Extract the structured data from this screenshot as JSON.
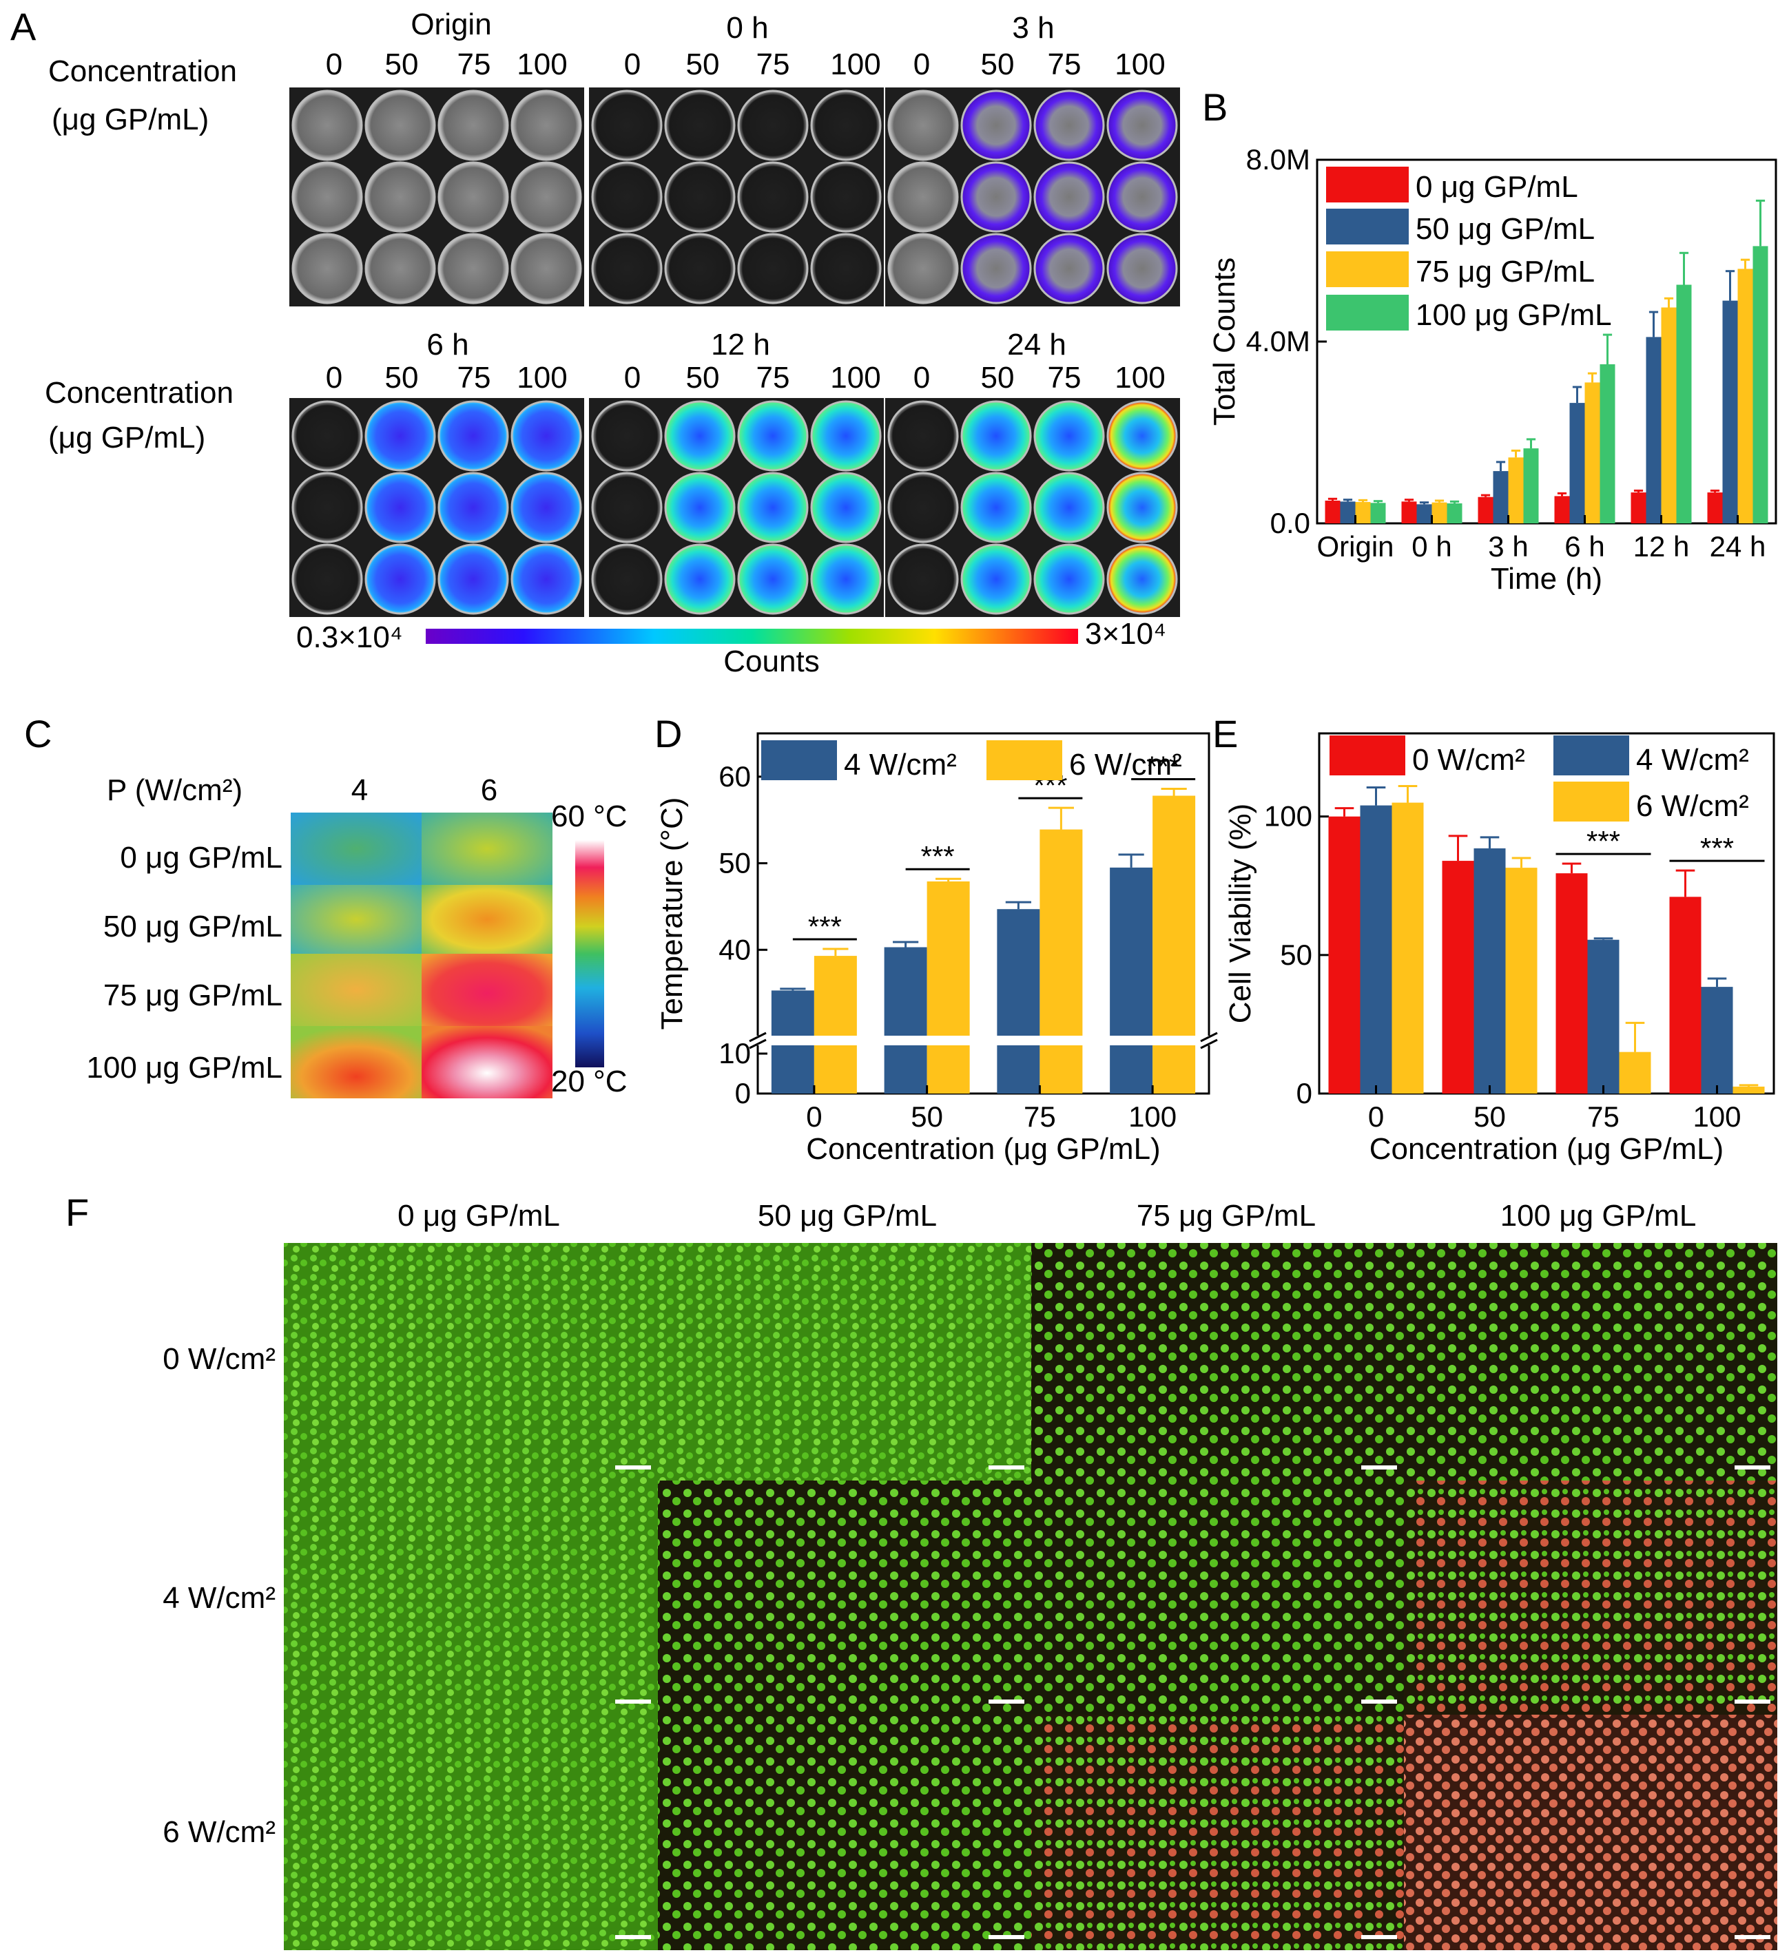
{
  "colors": {
    "red": "#ee1111",
    "blue": "#2e5b8e",
    "yellow": "#ffc21a",
    "green": "#3cc46e",
    "plate_bg": "#1d1d1d"
  },
  "panel_a": {
    "letter": "A",
    "row_label_line1": "Concentration",
    "row_label_line2": "(μg GP/mL)",
    "time_labels_top": [
      "Origin",
      "0 h",
      "3 h"
    ],
    "time_labels_bottom": [
      "6 h",
      "12 h",
      "24 h"
    ],
    "conc_labels": [
      "0",
      "50",
      "75",
      "100"
    ],
    "colorbar_min": "0.3×10⁴",
    "colorbar_max": "3×10⁴",
    "colorbar_label": "Counts"
  },
  "panel_c": {
    "letter": "C",
    "header_p": "P (W/cm²)",
    "powers": [
      "4",
      "6"
    ],
    "rows": [
      "0 μg GP/mL",
      "50 μg GP/mL",
      "75 μg GP/mL",
      "100 μg GP/mL"
    ],
    "scale_max": "60 °C",
    "scale_min": "20 °C"
  },
  "panel_f": {
    "letter": "F",
    "columns": [
      "0 μg GP/mL",
      "50 μg GP/mL",
      "75 μg GP/mL",
      "100 μg GP/mL"
    ],
    "rows": [
      "0 W/cm²",
      "4 W/cm²",
      "6 W/cm²"
    ]
  },
  "chart_data": [
    {
      "id": "B",
      "letter": "B",
      "type": "bar",
      "title": "",
      "xlabel": "Time (h)",
      "ylabel": "Total Counts",
      "categories": [
        "Origin",
        "0 h",
        "3 h",
        "6 h",
        "12 h",
        "24 h"
      ],
      "ylim": [
        0,
        8000000
      ],
      "ytick_values": [
        0,
        4000000,
        8000000
      ],
      "ytick_labels": [
        "0.0",
        "4.0M",
        "8.0M"
      ],
      "legend_position": "top-left",
      "series": [
        {
          "name": "0 μg GP/mL",
          "color": "#ee1111",
          "values": [
            500000,
            480000,
            580000,
            600000,
            680000,
            680000
          ],
          "errors": [
            40000,
            40000,
            40000,
            60000,
            40000,
            40000
          ]
        },
        {
          "name": "50 μg GP/mL",
          "color": "#2e5b8e",
          "values": [
            480000,
            420000,
            1150000,
            2650000,
            4100000,
            4900000
          ],
          "errors": [
            40000,
            40000,
            200000,
            350000,
            550000,
            650000
          ]
        },
        {
          "name": "75 μg GP/mL",
          "color": "#ffc21a",
          "values": [
            470000,
            460000,
            1450000,
            3100000,
            4750000,
            5600000
          ],
          "errors": [
            40000,
            40000,
            150000,
            200000,
            200000,
            200000
          ]
        },
        {
          "name": "100 μg GP/mL",
          "color": "#3cc46e",
          "values": [
            450000,
            440000,
            1650000,
            3500000,
            5250000,
            6100000
          ],
          "errors": [
            40000,
            40000,
            200000,
            650000,
            700000,
            1000000
          ]
        }
      ]
    },
    {
      "id": "D",
      "letter": "D",
      "type": "bar",
      "title": "",
      "xlabel": "Concentration (μg GP/mL)",
      "ylabel": "Temperature (°C)",
      "categories": [
        "0",
        "50",
        "75",
        "100"
      ],
      "axis_break": [
        10,
        30
      ],
      "ylim": [
        0,
        65
      ],
      "ytick_values": [
        0,
        10,
        40,
        50,
        60
      ],
      "ytick_labels": [
        "0",
        "10",
        "40",
        "50",
        "60"
      ],
      "legend_position": "top",
      "significance": [
        "***",
        "***",
        "***",
        "***"
      ],
      "series": [
        {
          "name": "4 W/cm²",
          "color": "#2e5b8e",
          "values": [
            35.3,
            40.3,
            44.7,
            49.5
          ],
          "errors": [
            0.2,
            0.6,
            0.8,
            1.5
          ]
        },
        {
          "name": "6 W/cm²",
          "color": "#ffc21a",
          "values": [
            39.3,
            47.9,
            53.9,
            57.8
          ],
          "errors": [
            0.8,
            0.3,
            2.5,
            0.8
          ]
        }
      ]
    },
    {
      "id": "E",
      "letter": "E",
      "type": "bar",
      "title": "",
      "xlabel": "Concentration (μg GP/mL)",
      "ylabel": "Cell Viability (%)",
      "categories": [
        "0",
        "50",
        "75",
        "100"
      ],
      "ylim": [
        0,
        130
      ],
      "ytick_values": [
        0,
        50,
        100
      ],
      "ytick_labels": [
        "0",
        "50",
        "100"
      ],
      "legend_position": "top",
      "significance": [
        "",
        "",
        "***",
        "***"
      ],
      "series": [
        {
          "name": "0 W/cm²",
          "color": "#ee1111",
          "values": [
            100,
            84,
            79.5,
            71
          ],
          "errors": [
            3,
            9,
            3.5,
            9.5
          ]
        },
        {
          "name": "4 W/cm²",
          "color": "#2e5b8e",
          "values": [
            104,
            88.5,
            55.5,
            38.5
          ],
          "errors": [
            6.5,
            4,
            0.5,
            3
          ]
        },
        {
          "name": "6 W/cm²",
          "color": "#ffc21a",
          "values": [
            105,
            81.5,
            15,
            2.5
          ],
          "errors": [
            6,
            3.5,
            10.5,
            0.5
          ]
        }
      ]
    }
  ]
}
